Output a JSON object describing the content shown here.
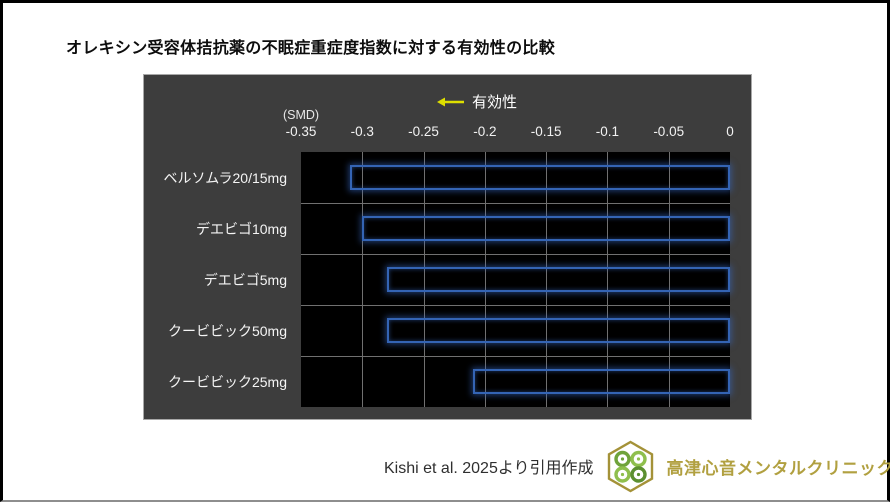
{
  "page": {
    "title": "オレキシン受容体拮抗薬の不眠症重症度指数に対する有効性の比較"
  },
  "chart": {
    "effect_label": "有効性",
    "unit_label": "(SMD)",
    "axis_ticks": [
      "-0.35",
      "-0.3",
      "-0.25",
      "-0.2",
      "-0.15",
      "-0.1",
      "-0.05",
      "0"
    ],
    "colors": {
      "panel_bg": "#3d3d3d",
      "plot_bg": "#000000",
      "grid": "#707070",
      "bar_border": "#3464b4",
      "bar_glow": "rgba(54,104,196,0.55)",
      "arrow": "#dedf00"
    }
  },
  "chart_data": {
    "type": "bar",
    "orientation": "horizontal",
    "title": "オレキシン受容体拮抗薬の不眠症重症度指数に対する有効性の比較",
    "xlabel": "(SMD)",
    "xlim": [
      -0.35,
      0
    ],
    "grid": true,
    "annotation": "← 有効性",
    "categories": [
      "ベルソムラ20/15mg",
      "デエビゴ10mg",
      "デエビゴ5mg",
      "クービビック50mg",
      "クービビック25mg"
    ],
    "values": [
      -0.31,
      -0.3,
      -0.28,
      -0.28,
      -0.21
    ],
    "bar_fill": "transparent",
    "bar_outline": "blue-glow"
  },
  "footer": {
    "source": "Kishi et al. 2025より引用作成",
    "clinic": "高津心音メンタルクリニック"
  }
}
